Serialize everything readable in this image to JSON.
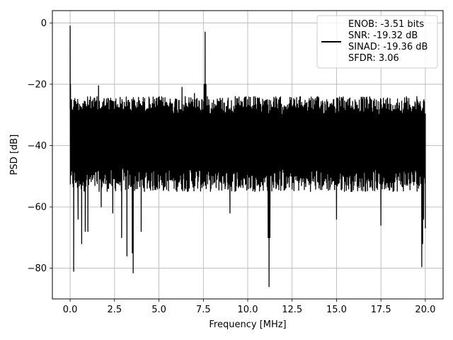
{
  "chart_data": {
    "type": "line",
    "title": "",
    "xlabel": "Frequency [MHz]",
    "ylabel": "PSD [dB]",
    "xlim": [
      -1,
      21
    ],
    "ylim": [
      -90,
      4
    ],
    "xticks": [
      0.0,
      2.5,
      5.0,
      7.5,
      10.0,
      12.5,
      15.0,
      17.5,
      20.0
    ],
    "xtick_labels": [
      "0.0",
      "2.5",
      "5.0",
      "7.5",
      "10.0",
      "12.5",
      "15.0",
      "17.5",
      "20.0"
    ],
    "yticks": [
      0,
      -20,
      -40,
      -60,
      -80
    ],
    "ytick_labels": [
      "0",
      "−20",
      "−40",
      "−60",
      "−80"
    ],
    "grid": true,
    "legend_position": "top-right",
    "legend": [
      "ENOB: -3.51 bits",
      "SNR: -19.32 dB",
      "SINAD: -19.36 dB",
      "SFDR: 3.06"
    ],
    "series": [
      {
        "color": "#000000",
        "noise_band": {
          "x_range": [
            0,
            20
          ],
          "upper_envelope_db": -24,
          "lower_envelope_db": -55
        },
        "x": [
          0.0,
          0.02,
          0.05,
          0.2,
          0.45,
          0.65,
          0.85,
          1.0,
          1.6,
          1.75,
          2.4,
          2.9,
          3.2,
          3.5,
          3.55,
          4.0,
          6.3,
          6.9,
          7.0,
          7.55,
          7.6,
          7.65,
          9.0,
          11.15,
          11.2,
          11.25,
          15.0,
          17.5,
          19.8,
          19.85,
          19.9,
          20.0
        ],
        "y": [
          -1.0,
          -20.0,
          -33.0,
          -81.0,
          -64.0,
          -72.0,
          -68.0,
          -68.0,
          -20.5,
          -60.0,
          -62.0,
          -70.0,
          -76.0,
          -75.0,
          -81.5,
          -68.0,
          -21.0,
          -25.0,
          -23.0,
          -20.0,
          -3.0,
          -20.0,
          -62.0,
          -70.0,
          -86.0,
          -70.0,
          -64.0,
          -66.0,
          -79.5,
          -72.0,
          -64.0,
          -67.0
        ]
      }
    ]
  }
}
